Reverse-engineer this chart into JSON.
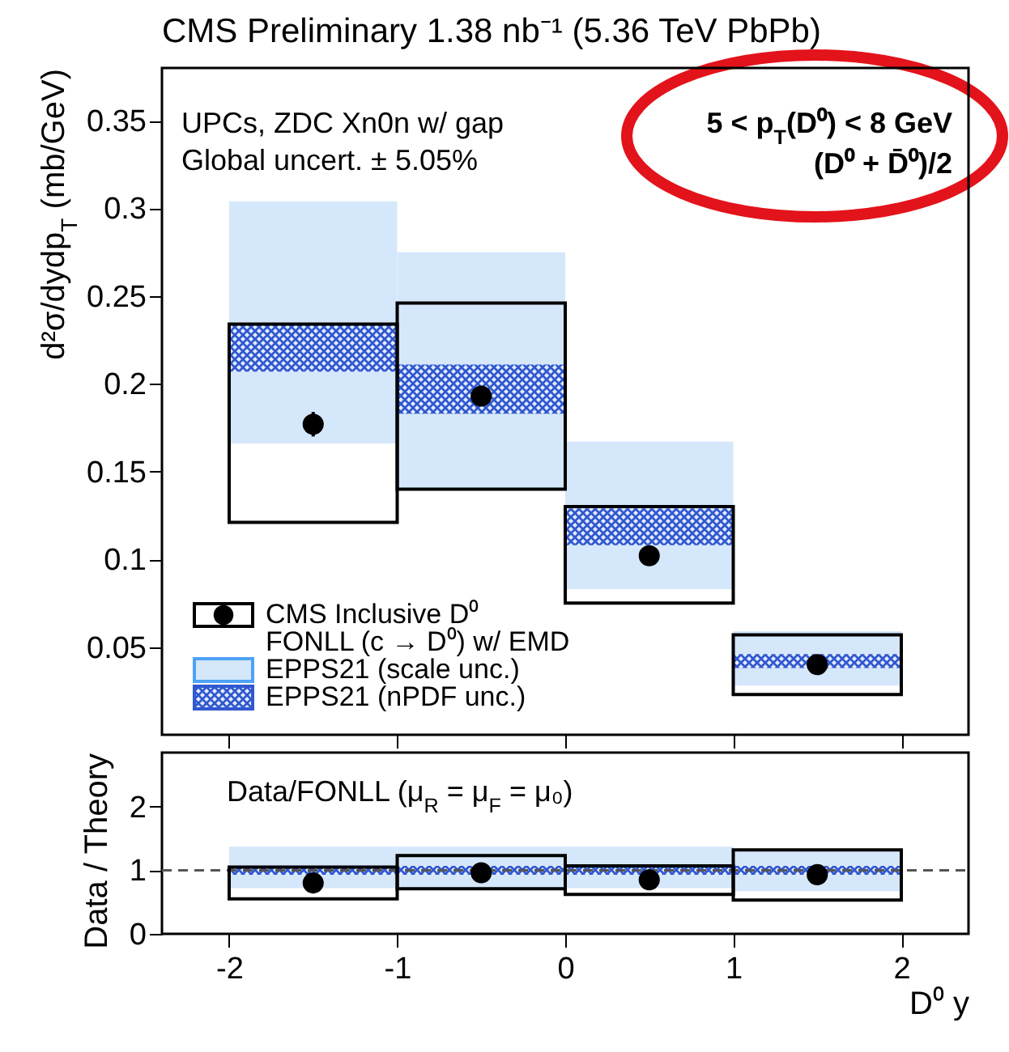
{
  "chart_data": [
    {
      "type": "bar",
      "title": "CMS Preliminary 1.38 nb⁻¹ (5.36 TeV PbPb)",
      "ylabel": "d²σ/dydp$_{T}$ (mb/GeV)",
      "annotations": [
        "UPCs, ZDC Xn0n w/ gap",
        "Global uncert. ± 5.05%",
        "5 < p$_{T}$(D⁰) < 8 GeV",
        "(D⁰ + D̄⁰)/2"
      ],
      "x": [
        -1.5,
        -0.5,
        0.5,
        1.5
      ],
      "xlim": [
        -2.4,
        2.4
      ],
      "xticks": [
        -2,
        -1,
        0,
        1,
        2
      ],
      "ylim": [
        0,
        0.38
      ],
      "yticks": [
        0.05,
        0.1,
        0.15,
        0.2,
        0.25,
        0.3,
        0.35
      ],
      "tick_labels": "y",
      "legend": "bottom left",
      "marker": "circle",
      "series": [
        {
          "name": "CMS Inclusive D⁰",
          "type": "scatter",
          "color": "#000000",
          "values": [
            0.177,
            0.193,
            0.102,
            0.04
          ],
          "errors": [
            0.007,
            null,
            null,
            null
          ]
        },
        {
          "name": "FONLL (c → D⁰) w/ EMD",
          "color": "#000000",
          "base": [
            0.121,
            0.14,
            0.075,
            0.023
          ],
          "values": [
            0.113,
            0.106,
            0.055,
            0.034
          ]
        },
        {
          "name": "EPPS21 (scale unc.)",
          "color": "#d5e7fb",
          "base": [
            0.166,
            0.14,
            0.083,
            0.028
          ],
          "values": [
            0.138,
            0.135,
            0.084,
            0.031
          ]
        },
        {
          "name": "EPPS21 (nPDF unc.)",
          "color": "#3058d0",
          "base": [
            0.207,
            0.183,
            0.108,
            0.038
          ],
          "values": [
            0.027,
            0.028,
            0.021,
            0.008
          ]
        }
      ]
    },
    {
      "type": "bar",
      "xlabel": "D⁰ y",
      "ylabel": "Data / Theory",
      "annotations": [
        "Data/FONLL (μ$_{R}$ = μ$_{F}$ = μ₀)"
      ],
      "x": [
        -1.5,
        -0.5,
        0.5,
        1.5
      ],
      "xlim": [
        -2.4,
        2.4
      ],
      "xticks": [
        -2,
        -1,
        0,
        1,
        2
      ],
      "ylim": [
        0,
        2.85
      ],
      "yticks": [
        0,
        1,
        2
      ],
      "marker": "circle",
      "ref_lines": [
        {
          "axis": "y",
          "value": 1,
          "line_style": "dashed",
          "color": "#555555"
        }
      ],
      "series": [
        {
          "type": "scatter",
          "color": "#000000",
          "values": [
            0.8,
            0.96,
            0.85,
            0.93
          ]
        },
        {
          "color": "#000000",
          "base": [
            0.55,
            0.71,
            0.62,
            0.53
          ],
          "values": [
            0.5,
            0.52,
            0.45,
            0.79
          ]
        },
        {
          "color": "#d5e7fb",
          "base": [
            0.72,
            0.72,
            0.72,
            0.67
          ],
          "values": [
            0.65,
            0.65,
            0.65,
            0.66
          ]
        },
        {
          "color": "#3058d0",
          "base": [
            0.93,
            0.93,
            0.93,
            0.93
          ],
          "values": [
            0.14,
            0.14,
            0.14,
            0.14
          ]
        }
      ]
    }
  ]
}
